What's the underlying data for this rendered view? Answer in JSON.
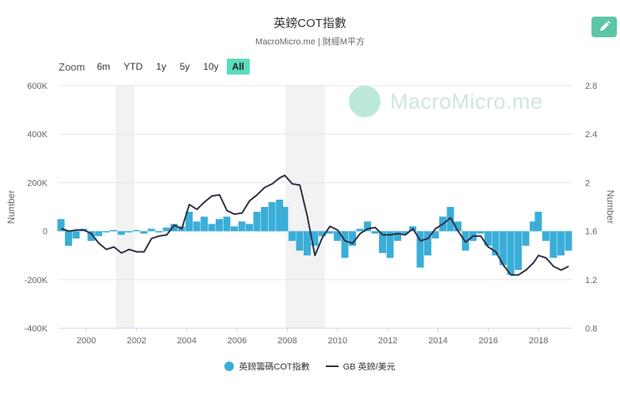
{
  "header": {
    "title": "英鎊COT指數",
    "subtitle": "MacroMicro.me | 財經M平方"
  },
  "toolbar": {
    "edit_icon": "pencil-icon",
    "accent_color": "#5cc6a7"
  },
  "zoom": {
    "label": "Zoom",
    "buttons": [
      "6m",
      "YTD",
      "1y",
      "5y",
      "10y",
      "All"
    ],
    "active": "All"
  },
  "watermark": {
    "text": "MacroMicro.me"
  },
  "chart_data": {
    "type": "bar+line",
    "title": "英鎊COT指數",
    "x_ticks": [
      "2000",
      "2002",
      "2004",
      "2006",
      "2008",
      "2010",
      "2012",
      "2014",
      "2016",
      "2018"
    ],
    "x_range": [
      1998.9,
      2019.35
    ],
    "y_left": {
      "label": "Number",
      "range": [
        -400000,
        600000
      ],
      "ticks": [
        "600K",
        "400K",
        "200K",
        "0",
        "-200K",
        "-400K"
      ]
    },
    "y_right": {
      "label": "Number",
      "range": [
        0.8,
        2.8
      ],
      "ticks": [
        "2.8",
        "2.4",
        "2",
        "1.6",
        "1.2",
        "0.8"
      ]
    },
    "shaded_periods": [
      [
        2001.17,
        2001.92
      ],
      [
        2007.92,
        2009.5
      ]
    ],
    "grid": "horizontal",
    "legend": "bottom",
    "series": [
      {
        "name": "英鎊籌碼COT指數",
        "type": "bar",
        "axis": "left",
        "color": "#3aaed8",
        "points": [
          [
            1999.0,
            50000
          ],
          [
            1999.3,
            -60000
          ],
          [
            1999.6,
            -30000
          ],
          [
            1999.9,
            10000
          ],
          [
            2000.2,
            -40000
          ],
          [
            2000.5,
            -20000
          ],
          [
            2000.8,
            -5000
          ],
          [
            2001.1,
            5000
          ],
          [
            2001.4,
            -15000
          ],
          [
            2001.7,
            -5000
          ],
          [
            2002.0,
            5000
          ],
          [
            2002.3,
            -10000
          ],
          [
            2002.6,
            10000
          ],
          [
            2002.9,
            -5000
          ],
          [
            2003.2,
            15000
          ],
          [
            2003.5,
            30000
          ],
          [
            2003.8,
            20000
          ],
          [
            2004.1,
            80000
          ],
          [
            2004.4,
            40000
          ],
          [
            2004.7,
            60000
          ],
          [
            2005.0,
            30000
          ],
          [
            2005.3,
            50000
          ],
          [
            2005.6,
            60000
          ],
          [
            2005.9,
            20000
          ],
          [
            2006.2,
            40000
          ],
          [
            2006.5,
            30000
          ],
          [
            2006.8,
            80000
          ],
          [
            2007.1,
            100000
          ],
          [
            2007.4,
            120000
          ],
          [
            2007.7,
            130000
          ],
          [
            2007.9,
            100000
          ],
          [
            2008.2,
            -40000
          ],
          [
            2008.5,
            -80000
          ],
          [
            2008.8,
            -100000
          ],
          [
            2009.1,
            -60000
          ],
          [
            2009.4,
            -20000
          ],
          [
            2009.7,
            -10000
          ],
          [
            2010.0,
            -40000
          ],
          [
            2010.3,
            -110000
          ],
          [
            2010.6,
            -60000
          ],
          [
            2010.9,
            10000
          ],
          [
            2011.2,
            40000
          ],
          [
            2011.5,
            -10000
          ],
          [
            2011.8,
            -90000
          ],
          [
            2012.1,
            -110000
          ],
          [
            2012.4,
            -40000
          ],
          [
            2012.7,
            -10000
          ],
          [
            2013.0,
            20000
          ],
          [
            2013.3,
            -150000
          ],
          [
            2013.6,
            -100000
          ],
          [
            2013.9,
            -30000
          ],
          [
            2014.2,
            60000
          ],
          [
            2014.5,
            100000
          ],
          [
            2014.8,
            40000
          ],
          [
            2015.1,
            -80000
          ],
          [
            2015.4,
            -40000
          ],
          [
            2015.7,
            -10000
          ],
          [
            2016.0,
            -60000
          ],
          [
            2016.3,
            -100000
          ],
          [
            2016.6,
            -140000
          ],
          [
            2016.9,
            -180000
          ],
          [
            2017.2,
            -160000
          ],
          [
            2017.5,
            -60000
          ],
          [
            2017.8,
            40000
          ],
          [
            2018.0,
            80000
          ],
          [
            2018.3,
            -40000
          ],
          [
            2018.6,
            -110000
          ],
          [
            2018.9,
            -100000
          ],
          [
            2019.2,
            -80000
          ]
        ]
      },
      {
        "name": "GB 英鎊/美元",
        "type": "line",
        "axis": "right",
        "color": "#2d2f44",
        "points": [
          [
            1999.0,
            1.62
          ],
          [
            1999.3,
            1.6
          ],
          [
            1999.6,
            1.61
          ],
          [
            1999.9,
            1.61
          ],
          [
            2000.2,
            1.58
          ],
          [
            2000.5,
            1.5
          ],
          [
            2000.8,
            1.45
          ],
          [
            2001.1,
            1.47
          ],
          [
            2001.4,
            1.42
          ],
          [
            2001.7,
            1.45
          ],
          [
            2002.0,
            1.43
          ],
          [
            2002.3,
            1.43
          ],
          [
            2002.6,
            1.54
          ],
          [
            2002.9,
            1.56
          ],
          [
            2003.2,
            1.57
          ],
          [
            2003.5,
            1.65
          ],
          [
            2003.8,
            1.62
          ],
          [
            2004.1,
            1.82
          ],
          [
            2004.4,
            1.78
          ],
          [
            2004.7,
            1.84
          ],
          [
            2005.0,
            1.89
          ],
          [
            2005.3,
            1.9
          ],
          [
            2005.6,
            1.77
          ],
          [
            2005.9,
            1.74
          ],
          [
            2006.2,
            1.75
          ],
          [
            2006.5,
            1.85
          ],
          [
            2006.8,
            1.9
          ],
          [
            2007.1,
            1.96
          ],
          [
            2007.4,
            1.99
          ],
          [
            2007.7,
            2.04
          ],
          [
            2007.9,
            2.06
          ],
          [
            2008.2,
            1.99
          ],
          [
            2008.5,
            1.98
          ],
          [
            2008.8,
            1.72
          ],
          [
            2009.1,
            1.4
          ],
          [
            2009.4,
            1.55
          ],
          [
            2009.7,
            1.64
          ],
          [
            2010.0,
            1.61
          ],
          [
            2010.3,
            1.52
          ],
          [
            2010.6,
            1.5
          ],
          [
            2010.9,
            1.58
          ],
          [
            2011.2,
            1.62
          ],
          [
            2011.5,
            1.63
          ],
          [
            2011.8,
            1.57
          ],
          [
            2012.1,
            1.57
          ],
          [
            2012.4,
            1.58
          ],
          [
            2012.7,
            1.57
          ],
          [
            2013.0,
            1.62
          ],
          [
            2013.3,
            1.52
          ],
          [
            2013.6,
            1.54
          ],
          [
            2013.9,
            1.62
          ],
          [
            2014.2,
            1.66
          ],
          [
            2014.5,
            1.71
          ],
          [
            2014.8,
            1.6
          ],
          [
            2015.1,
            1.51
          ],
          [
            2015.4,
            1.56
          ],
          [
            2015.7,
            1.56
          ],
          [
            2016.0,
            1.47
          ],
          [
            2016.3,
            1.43
          ],
          [
            2016.6,
            1.32
          ],
          [
            2016.9,
            1.24
          ],
          [
            2017.2,
            1.24
          ],
          [
            2017.5,
            1.28
          ],
          [
            2017.8,
            1.34
          ],
          [
            2018.0,
            1.4
          ],
          [
            2018.3,
            1.38
          ],
          [
            2018.6,
            1.31
          ],
          [
            2018.9,
            1.28
          ],
          [
            2019.2,
            1.31
          ]
        ]
      }
    ]
  }
}
